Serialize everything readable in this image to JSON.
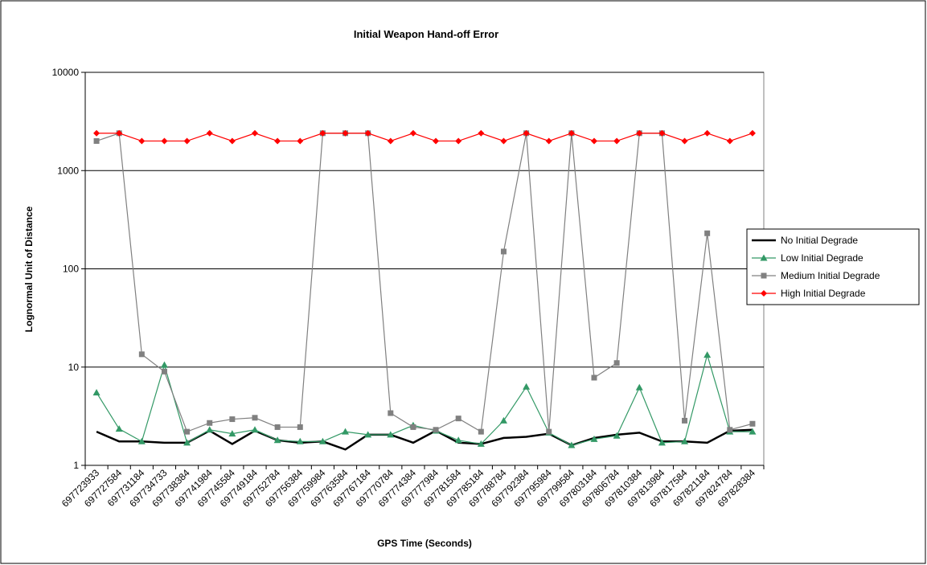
{
  "chart_data": {
    "type": "line",
    "title": "Initial Weapon Hand-off Error",
    "xlabel": "GPS Time (Seconds)",
    "ylabel": "Lognormal Unit of Distance",
    "categories": [
      "697723933",
      "697727584",
      "697731184",
      "697734733",
      "697738384",
      "697741984",
      "697745584",
      "697749184",
      "697752784",
      "697756384",
      "697759984",
      "697763584",
      "697767184",
      "697770784",
      "697774384",
      "697777984",
      "697781584",
      "697785184",
      "697788784",
      "697792384",
      "697795984",
      "697799584",
      "697803184",
      "697806784",
      "697810384",
      "697813984",
      "697817584",
      "697821184",
      "697824784",
      "697828384"
    ],
    "series": [
      {
        "name": "No Initial Degrade",
        "color": "#000000",
        "marker": "none",
        "values": [
          2.2,
          1.75,
          1.75,
          1.7,
          1.7,
          2.25,
          1.65,
          2.25,
          1.8,
          1.7,
          1.75,
          1.45,
          2.05,
          2.05,
          1.7,
          2.25,
          1.7,
          1.65,
          1.9,
          1.95,
          2.1,
          1.6,
          1.9,
          2.05,
          2.15,
          1.75,
          1.75,
          1.7,
          2.25,
          2.3
        ]
      },
      {
        "name": "Low Initial Degrade",
        "color": "#339966",
        "marker": "triangle",
        "values": [
          5.5,
          2.35,
          1.75,
          10.5,
          1.7,
          2.3,
          2.1,
          2.3,
          1.8,
          1.75,
          1.75,
          2.2,
          2.05,
          2.05,
          2.55,
          2.25,
          1.8,
          1.65,
          2.85,
          6.3,
          2.15,
          1.6,
          1.85,
          2.0,
          6.2,
          1.7,
          1.75,
          13.3,
          2.2,
          2.2
        ]
      },
      {
        "name": "Medium Initial Degrade",
        "color": "#808080",
        "marker": "square",
        "values": [
          2000,
          2400,
          13.5,
          9,
          2.2,
          2.7,
          2.95,
          3.05,
          2.45,
          2.45,
          2400,
          2400,
          2400,
          3.4,
          2.45,
          2.3,
          3.0,
          2.2,
          150,
          2400,
          2.2,
          2400,
          7.8,
          11,
          2400,
          2400,
          2.85,
          230,
          2.3,
          2.65
        ]
      },
      {
        "name": "High Initial Degrade",
        "color": "#ff0000",
        "marker": "diamond",
        "values": [
          2400,
          2400,
          2000,
          2000,
          2000,
          2400,
          2000,
          2400,
          2000,
          2000,
          2400,
          2400,
          2400,
          2000,
          2400,
          2000,
          2000,
          2400,
          2000,
          2400,
          2000,
          2400,
          2000,
          2000,
          2400,
          2400,
          2000,
          2400,
          2000,
          2400
        ]
      }
    ],
    "ylim": [
      1,
      10000
    ],
    "yticks": [
      1,
      10,
      100,
      1000,
      10000
    ],
    "log_y": true,
    "grid": true,
    "legend": "right"
  }
}
